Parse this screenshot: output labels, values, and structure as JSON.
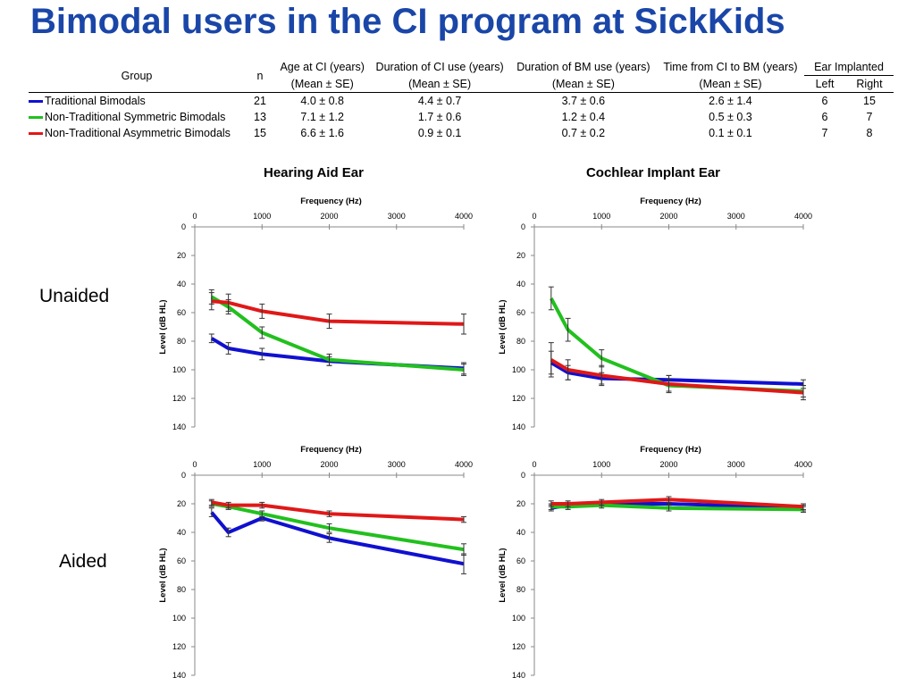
{
  "title": "Bimodal users in the CI program at SickKids",
  "table": {
    "header_group": "Group",
    "header_n": "n",
    "col_age": "Age at CI (years)",
    "col_ci_use": "Duration of CI use (years)",
    "col_bm_use": "Duration of BM use (years)",
    "col_ci_to_bm": "Time from CI to BM (years)",
    "col_ear": "Ear Implanted",
    "sub_mean": "(Mean ± SE)",
    "sub_left": "Left",
    "sub_right": "Right",
    "rows": [
      {
        "group": "Traditional Bimodals",
        "color": "#1010d0",
        "n": "21",
        "age": "4.0 ± 0.8",
        "ci_use": "4.4 ± 0.7",
        "bm_use": "3.7 ± 0.6",
        "ci_to_bm": "2.6 ± 1.4",
        "left": "6",
        "right": "15"
      },
      {
        "group": "Non-Traditional Symmetric Bimodals",
        "color": "#22c01e",
        "n": "13",
        "age": "7.1 ± 1.2",
        "ci_use": "1.7 ± 0.6",
        "bm_use": "1.2 ± 0.4",
        "ci_to_bm": "0.5 ± 0.3",
        "left": "6",
        "right": "7"
      },
      {
        "group": "Non-Traditional Asymmetric Bimodals",
        "color": "#e01818",
        "n": "15",
        "age": "6.6 ± 1.6",
        "ci_use": "0.9 ± 0.1",
        "bm_use": "0.7 ± 0.2",
        "ci_to_bm": "0.1 ± 0.1",
        "left": "7",
        "right": "8"
      }
    ]
  },
  "column_titles": {
    "left": "Hearing Aid Ear",
    "right": "Cochlear Implant Ear"
  },
  "row_labels": {
    "top": "Unaided",
    "bottom": "Aided"
  },
  "chart_data": [
    {
      "type": "line",
      "id": "ha-unaided",
      "xlabel": "Frequency (Hz)",
      "ylabel": "Level (dB HL)",
      "xlim": [
        0,
        4000
      ],
      "xticks": [
        0,
        1000,
        2000,
        3000,
        4000
      ],
      "ylim": [
        0,
        140
      ],
      "yticks": [
        0,
        20,
        40,
        60,
        80,
        100,
        120,
        140
      ],
      "y_inverted": true,
      "x_axis_position": "top",
      "series": [
        {
          "color": "#1010d0",
          "x": [
            250,
            500,
            1000,
            2000,
            4000
          ],
          "y": [
            78,
            85,
            89,
            94,
            99
          ],
          "err": [
            3,
            4,
            4,
            3,
            4
          ]
        },
        {
          "color": "#22c01e",
          "x": [
            250,
            500,
            1000,
            2000,
            4000
          ],
          "y": [
            49,
            56,
            74,
            93,
            100
          ],
          "err": [
            5,
            5,
            4,
            4,
            4
          ]
        },
        {
          "color": "#e01818",
          "x": [
            250,
            500,
            1000,
            2000,
            4000
          ],
          "y": [
            52,
            53,
            59,
            66,
            68
          ],
          "err": [
            6,
            6,
            5,
            5,
            7
          ]
        }
      ]
    },
    {
      "type": "line",
      "id": "ci-unaided",
      "xlabel": "Frequency (Hz)",
      "ylabel": "Level (dB HL)",
      "xlim": [
        0,
        4000
      ],
      "xticks": [
        0,
        1000,
        2000,
        3000,
        4000
      ],
      "ylim": [
        0,
        140
      ],
      "yticks": [
        0,
        20,
        40,
        60,
        80,
        100,
        120,
        140
      ],
      "y_inverted": true,
      "x_axis_position": "top",
      "series": [
        {
          "color": "#1010d0",
          "x": [
            250,
            500,
            1000,
            2000,
            4000
          ],
          "y": [
            95,
            102,
            106,
            107,
            110
          ],
          "err": [
            8,
            5,
            4,
            3,
            3
          ]
        },
        {
          "color": "#22c01e",
          "x": [
            250,
            500,
            1000,
            2000,
            4000
          ],
          "y": [
            50,
            72,
            92,
            111,
            115
          ],
          "err": [
            8,
            8,
            6,
            4,
            4
          ]
        },
        {
          "color": "#e01818",
          "x": [
            250,
            500,
            1000,
            2000,
            4000
          ],
          "y": [
            93,
            100,
            104,
            110,
            116
          ],
          "err": [
            12,
            7,
            7,
            6,
            5
          ]
        }
      ]
    },
    {
      "type": "line",
      "id": "ha-aided",
      "xlabel": "Frequency (Hz)",
      "ylabel": "Level (dB HL)",
      "xlim": [
        0,
        4000
      ],
      "xticks": [
        0,
        1000,
        2000,
        3000,
        4000
      ],
      "ylim": [
        0,
        140
      ],
      "yticks": [
        0,
        20,
        40,
        60,
        80,
        100,
        120,
        140
      ],
      "y_inverted": true,
      "x_axis_position": "top",
      "series": [
        {
          "color": "#1010d0",
          "x": [
            250,
            500,
            1000,
            2000,
            4000
          ],
          "y": [
            26,
            40,
            30,
            44,
            62
          ],
          "err": [
            3,
            3,
            2,
            3,
            7
          ]
        },
        {
          "color": "#22c01e",
          "x": [
            250,
            500,
            1000,
            2000,
            4000
          ],
          "y": [
            20,
            22,
            27,
            37,
            52
          ],
          "err": [
            2,
            2,
            2,
            3,
            4
          ]
        },
        {
          "color": "#e01818",
          "x": [
            250,
            500,
            1000,
            2000,
            4000
          ],
          "y": [
            19,
            21,
            21,
            27,
            31
          ],
          "err": [
            2,
            2,
            2,
            2,
            2
          ]
        }
      ]
    },
    {
      "type": "line",
      "id": "ci-aided",
      "xlabel": "Frequency (Hz)",
      "ylabel": "Level (dB HL)",
      "xlim": [
        0,
        4000
      ],
      "xticks": [
        0,
        1000,
        2000,
        3000,
        4000
      ],
      "ylim": [
        0,
        140
      ],
      "yticks": [
        0,
        20,
        40,
        60,
        80,
        100,
        120,
        140
      ],
      "y_inverted": true,
      "x_axis_position": "top",
      "series": [
        {
          "color": "#1010d0",
          "x": [
            250,
            500,
            1000,
            2000,
            4000
          ],
          "y": [
            23,
            21,
            20,
            20,
            23
          ],
          "err": [
            2,
            2,
            2,
            2,
            2
          ]
        },
        {
          "color": "#22c01e",
          "x": [
            250,
            500,
            1000,
            2000,
            4000
          ],
          "y": [
            22,
            22,
            21,
            23,
            24
          ],
          "err": [
            2,
            2,
            2,
            2,
            2
          ]
        },
        {
          "color": "#e01818",
          "x": [
            250,
            500,
            1000,
            2000,
            4000
          ],
          "y": [
            20,
            20,
            19,
            17,
            22
          ],
          "err": [
            2,
            2,
            2,
            2,
            2
          ]
        }
      ]
    }
  ]
}
